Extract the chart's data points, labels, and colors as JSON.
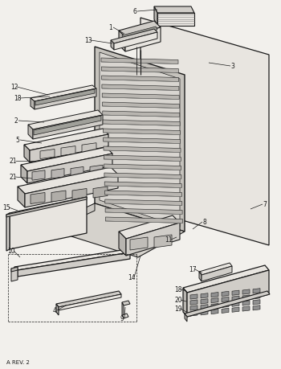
{
  "footer": "A REV. 2",
  "bg_color": "#f2f0ec",
  "line_color": "#1a1a1a",
  "fill_light": "#e8e5e0",
  "fill_mid": "#d0cdc8",
  "fill_dark": "#b8b5b0",
  "fill_darker": "#a0a09a"
}
